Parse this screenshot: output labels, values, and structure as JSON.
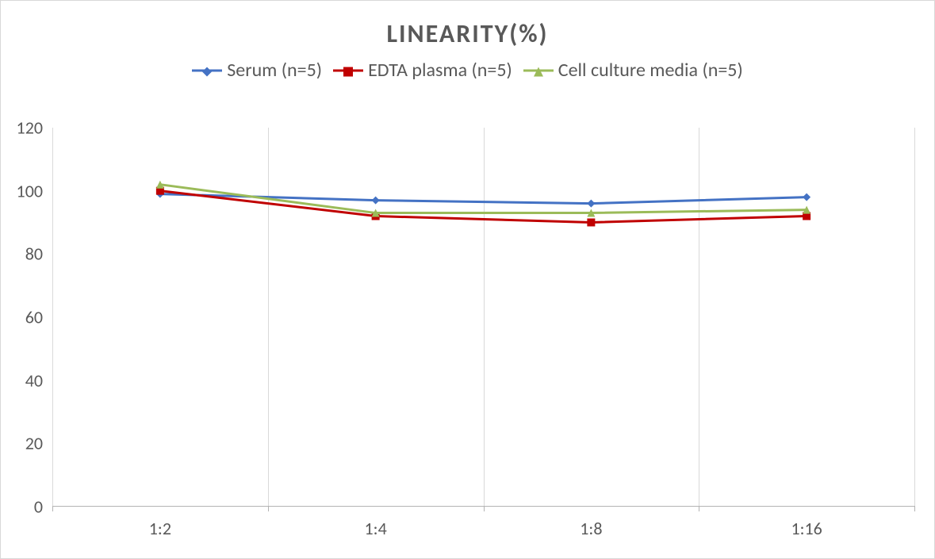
{
  "chart": {
    "type": "line",
    "title": "LINEARITY(%)",
    "title_fontsize": 32,
    "title_color": "#595959",
    "background_color": "#ffffff",
    "border_color": "#d9d9d9",
    "label_color": "#595959",
    "tick_fontsize": 22,
    "legend_fontsize": 24,
    "categories": [
      "1:2",
      "1:4",
      "1:8",
      "1:16"
    ],
    "ylim": [
      0,
      120
    ],
    "ytick_step": 20,
    "yticks": [
      0,
      20,
      40,
      60,
      80,
      100,
      120
    ],
    "grid_color": "#d9d9d9",
    "axis_color": "#b3b3b3",
    "line_width": 3,
    "marker_size": 10,
    "series": [
      {
        "name": "Serum (n=5)",
        "color": "#4472c4",
        "marker": "diamond",
        "values": [
          99,
          97,
          96,
          98
        ]
      },
      {
        "name": "EDTA plasma (n=5)",
        "color": "#c00000",
        "marker": "square",
        "values": [
          100,
          92,
          90,
          92
        ]
      },
      {
        "name": "Cell culture media (n=5)",
        "color": "#9bbb59",
        "marker": "triangle",
        "values": [
          102,
          93,
          93,
          94
        ]
      }
    ]
  }
}
